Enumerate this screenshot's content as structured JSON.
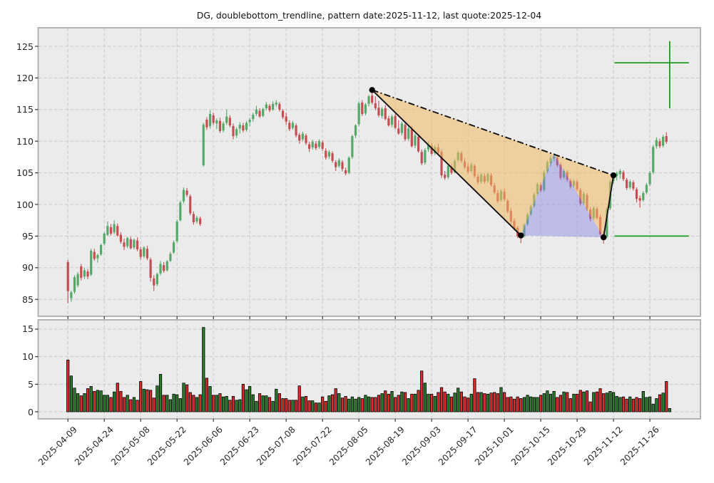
{
  "title": "DG, doublebottom_trendline, pattern date:2025-11-12, last quote:2025-12-04",
  "chart_data": {
    "type": "candlestick+volume",
    "symbol": "DG",
    "pattern_name": "doublebottom_trendline",
    "pattern_date": "2025-11-12",
    "last_quote_date": "2025-12-04",
    "price_panel": {
      "y_ticks": [
        85,
        90,
        95,
        100,
        105,
        110,
        115,
        120,
        125
      ],
      "ylim": [
        82.32,
        127.93
      ],
      "xlim": [
        -9,
        191.3
      ],
      "grid": true
    },
    "volume_panel": {
      "y_ticks": [
        0,
        5,
        10,
        15
      ],
      "ylim": [
        -1.29,
        16.68
      ]
    },
    "x_ticks": {
      "indices": [
        0,
        11,
        22,
        33,
        44,
        55,
        66,
        77,
        88,
        99,
        110,
        121,
        132,
        143,
        154,
        165,
        176
      ],
      "labels": [
        "2025-04-09",
        "2025-04-24",
        "2025-05-08",
        "2025-05-22",
        "2025-06-06",
        "2025-06-23",
        "2025-07-08",
        "2025-07-22",
        "2025-08-05",
        "2025-08-19",
        "2025-09-03",
        "2025-09-17",
        "2025-10-01",
        "2025-10-15",
        "2025-10-29",
        "2025-11-12",
        "2025-11-26"
      ]
    },
    "candles": [
      [
        90.9,
        91.2,
        84.4,
        86.3,
        9.4
      ],
      [
        85.2,
        86.4,
        84.6,
        86.1,
        6.5
      ],
      [
        86.2,
        88.8,
        85.9,
        88.5,
        4.3
      ],
      [
        87.2,
        89.3,
        86.9,
        89.0,
        3.3
      ],
      [
        90.2,
        90.6,
        88.0,
        88.4,
        2.9
      ],
      [
        88.6,
        90.0,
        88.2,
        89.6,
        3.3
      ],
      [
        89.4,
        89.8,
        88.2,
        88.6,
        4.2
      ],
      [
        88.9,
        93.0,
        88.7,
        92.7,
        4.6
      ],
      [
        92.5,
        93.0,
        91.1,
        91.4,
        3.7
      ],
      [
        91.5,
        92.2,
        90.8,
        92.0,
        3.9
      ],
      [
        92.1,
        93.8,
        91.9,
        93.6,
        3.8
      ],
      [
        93.8,
        95.6,
        93.5,
        95.4,
        3.0
      ],
      [
        95.2,
        97.3,
        95.0,
        96.6,
        3.0
      ],
      [
        96.4,
        96.9,
        95.1,
        95.4,
        2.6
      ],
      [
        95.6,
        97.5,
        95.3,
        96.9,
        3.6
      ],
      [
        96.6,
        97.0,
        94.9,
        95.1,
        5.2
      ],
      [
        95.2,
        95.6,
        93.8,
        94.1,
        3.7
      ],
      [
        94.0,
        94.6,
        92.8,
        93.3,
        2.6
      ],
      [
        93.4,
        94.9,
        93.1,
        94.7,
        3.0
      ],
      [
        94.5,
        94.9,
        92.9,
        93.1,
        2.2
      ],
      [
        93.2,
        94.6,
        92.9,
        94.4,
        2.6
      ],
      [
        94.3,
        94.8,
        92.6,
        92.9,
        2.1
      ],
      [
        92.9,
        93.3,
        91.3,
        91.7,
        5.5
      ],
      [
        91.8,
        93.4,
        91.5,
        93.2,
        4.1
      ],
      [
        93.0,
        93.5,
        91.2,
        91.5,
        4.0
      ],
      [
        91.3,
        91.6,
        87.8,
        88.4,
        3.9
      ],
      [
        88.3,
        88.8,
        86.3,
        87.2,
        2.5
      ],
      [
        87.4,
        89.2,
        87.1,
        89.0,
        4.7
      ],
      [
        89.1,
        91.1,
        88.8,
        90.6,
        6.8
      ],
      [
        90.4,
        90.9,
        89.2,
        89.5,
        3.0
      ],
      [
        89.6,
        91.2,
        89.4,
        91.0,
        3.0
      ],
      [
        91.1,
        92.5,
        90.9,
        92.2,
        2.2
      ],
      [
        92.4,
        94.3,
        92.2,
        94.0,
        3.2
      ],
      [
        94.2,
        97.6,
        94.0,
        97.3,
        3.1
      ],
      [
        97.5,
        100.6,
        97.3,
        100.3,
        2.4
      ],
      [
        100.5,
        102.7,
        100.2,
        102.3,
        5.2
      ],
      [
        102.2,
        102.6,
        101.2,
        101.5,
        4.9
      ],
      [
        101.3,
        101.6,
        98.3,
        98.6,
        3.5
      ],
      [
        98.5,
        98.9,
        96.8,
        97.2,
        3.0
      ],
      [
        97.3,
        98.2,
        97.0,
        97.9,
        2.6
      ],
      [
        97.8,
        98.1,
        96.6,
        96.9,
        3.1
      ],
      [
        106.2,
        112.9,
        106.0,
        112.6,
        15.3
      ],
      [
        113.4,
        113.8,
        111.8,
        112.2,
        6.1
      ],
      [
        112.4,
        114.9,
        112.0,
        114.3,
        4.6
      ],
      [
        114.1,
        114.5,
        112.6,
        112.9,
        3.0
      ],
      [
        112.8,
        113.6,
        111.9,
        113.3,
        3.0
      ],
      [
        113.2,
        113.7,
        111.3,
        111.6,
        3.3
      ],
      [
        111.7,
        113.1,
        111.4,
        112.8,
        2.7
      ],
      [
        112.9,
        115.0,
        112.6,
        113.9,
        2.8
      ],
      [
        113.7,
        114.1,
        112.2,
        112.5,
        2.1
      ],
      [
        112.4,
        112.8,
        110.3,
        110.8,
        2.8
      ],
      [
        110.9,
        112.2,
        110.5,
        111.9,
        2.1
      ],
      [
        112.0,
        113.0,
        111.2,
        112.6,
        2.2
      ],
      [
        112.5,
        112.9,
        111.4,
        111.7,
        5.0
      ],
      [
        111.8,
        113.2,
        111.5,
        112.9,
        4.0
      ],
      [
        113.0,
        113.7,
        112.4,
        113.4,
        4.6
      ],
      [
        113.5,
        114.5,
        113.1,
        114.2,
        3.1
      ],
      [
        114.3,
        115.6,
        114.0,
        115.0,
        1.9
      ],
      [
        114.8,
        115.2,
        113.7,
        113.9,
        3.3
      ],
      [
        114.0,
        115.3,
        113.8,
        115.1,
        2.9
      ],
      [
        115.2,
        116.2,
        114.9,
        115.8,
        2.9
      ],
      [
        115.6,
        115.9,
        114.6,
        114.9,
        2.6
      ],
      [
        115.0,
        116.3,
        114.8,
        115.9,
        1.9
      ],
      [
        115.8,
        116.5,
        115.4,
        116.1,
        4.1
      ],
      [
        115.9,
        116.2,
        114.7,
        115.0,
        3.3
      ],
      [
        114.8,
        115.1,
        113.5,
        113.8,
        2.4
      ],
      [
        113.9,
        114.5,
        112.6,
        113.1,
        2.4
      ],
      [
        112.9,
        113.3,
        111.6,
        111.9,
        2.1
      ],
      [
        112.1,
        113.2,
        111.8,
        112.9,
        2.1
      ],
      [
        112.5,
        112.8,
        110.6,
        110.9,
        2.1
      ],
      [
        111.0,
        111.3,
        109.6,
        110.1,
        4.7
      ],
      [
        110.3,
        111.5,
        110.0,
        111.2,
        2.7
      ],
      [
        110.9,
        111.2,
        109.4,
        109.7,
        2.8
      ],
      [
        109.5,
        109.9,
        108.3,
        108.8,
        2.0
      ],
      [
        109.0,
        110.2,
        108.7,
        109.9,
        2.0
      ],
      [
        109.6,
        110.0,
        108.6,
        108.9,
        1.6
      ],
      [
        109.1,
        110.3,
        108.8,
        110.0,
        1.6
      ],
      [
        109.8,
        110.1,
        108.5,
        108.8,
        2.7
      ],
      [
        108.5,
        108.9,
        107.1,
        107.4,
        1.9
      ],
      [
        107.6,
        108.6,
        107.2,
        108.3,
        2.9
      ],
      [
        108.1,
        108.4,
        106.6,
        106.9,
        3.1
      ],
      [
        106.7,
        107.0,
        105.3,
        105.9,
        4.2
      ],
      [
        106.1,
        107.3,
        105.8,
        107.0,
        3.3
      ],
      [
        106.7,
        107.0,
        105.2,
        105.6,
        2.5
      ],
      [
        105.4,
        105.8,
        104.6,
        104.9,
        2.8
      ],
      [
        105.0,
        107.6,
        104.8,
        107.4,
        2.3
      ],
      [
        107.5,
        111.0,
        107.2,
        110.8,
        2.7
      ],
      [
        110.9,
        112.7,
        110.5,
        112.5,
        2.3
      ],
      [
        112.7,
        116.3,
        112.4,
        116.0,
        2.6
      ],
      [
        116.1,
        116.5,
        114.0,
        114.3,
        2.4
      ],
      [
        114.4,
        116.0,
        114.1,
        115.8,
        3.0
      ],
      [
        115.9,
        117.3,
        115.5,
        117.1,
        2.7
      ],
      [
        117.2,
        118.1,
        115.8,
        116.1,
        2.6
      ],
      [
        116.0,
        117.1,
        114.9,
        115.2,
        2.6
      ],
      [
        115.3,
        116.4,
        113.8,
        114.1,
        3.0
      ],
      [
        114.0,
        115.4,
        113.6,
        115.1,
        3.3
      ],
      [
        115.2,
        115.7,
        113.3,
        113.5,
        3.8
      ],
      [
        113.6,
        114.0,
        112.3,
        112.5,
        3.2
      ],
      [
        112.6,
        114.2,
        112.2,
        113.9,
        3.7
      ],
      [
        114.0,
        114.3,
        111.9,
        112.1,
        2.6
      ],
      [
        112.0,
        113.3,
        111.0,
        111.2,
        3.0
      ],
      [
        111.3,
        113.1,
        110.9,
        112.8,
        3.6
      ],
      [
        112.6,
        112.9,
        110.0,
        110.3,
        3.5
      ],
      [
        110.4,
        112.3,
        110.1,
        112.0,
        2.4
      ],
      [
        111.9,
        112.4,
        109.0,
        109.2,
        3.2
      ],
      [
        109.3,
        111.2,
        108.9,
        110.9,
        3.2
      ],
      [
        110.7,
        111.1,
        108.2,
        108.4,
        3.9
      ],
      [
        108.3,
        108.7,
        106.2,
        106.5,
        7.4
      ],
      [
        106.6,
        108.9,
        106.3,
        108.6,
        5.2
      ],
      [
        108.7,
        110.0,
        108.3,
        109.5,
        3.2
      ],
      [
        109.3,
        109.7,
        107.7,
        108.0,
        3.2
      ],
      [
        108.1,
        109.4,
        107.8,
        109.1,
        2.8
      ],
      [
        109.0,
        109.6,
        107.9,
        108.2,
        3.5
      ],
      [
        108.3,
        108.7,
        104.2,
        104.6,
        4.4
      ],
      [
        104.7,
        105.3,
        103.9,
        104.2,
        3.6
      ],
      [
        104.3,
        106.4,
        104.0,
        106.1,
        3.2
      ],
      [
        106.0,
        106.4,
        104.7,
        105.0,
        2.7
      ],
      [
        105.1,
        107.2,
        104.9,
        106.9,
        3.4
      ],
      [
        107.0,
        108.5,
        106.7,
        108.2,
        4.3
      ],
      [
        108.1,
        108.4,
        106.6,
        106.9,
        3.6
      ],
      [
        106.8,
        107.3,
        105.6,
        105.9,
        2.7
      ],
      [
        106.0,
        106.5,
        104.9,
        105.2,
        2.5
      ],
      [
        105.3,
        106.6,
        105.0,
        106.3,
        3.2
      ],
      [
        106.1,
        106.4,
        104.2,
        104.5,
        6.0
      ],
      [
        104.4,
        104.8,
        103.2,
        103.5,
        3.5
      ],
      [
        103.6,
        105.0,
        103.3,
        104.7,
        3.5
      ],
      [
        104.5,
        104.9,
        103.3,
        103.6,
        3.3
      ],
      [
        103.7,
        105.1,
        103.4,
        104.8,
        3.2
      ],
      [
        104.6,
        105.0,
        102.8,
        103.1,
        3.4
      ],
      [
        103.0,
        103.4,
        101.6,
        101.9,
        3.5
      ],
      [
        101.8,
        102.3,
        100.2,
        100.5,
        3.3
      ],
      [
        100.7,
        102.4,
        100.4,
        102.1,
        4.4
      ],
      [
        102.0,
        102.5,
        100.5,
        100.8,
        3.5
      ],
      [
        100.6,
        100.9,
        98.6,
        98.9,
        2.6
      ],
      [
        99.0,
        99.4,
        96.9,
        97.3,
        2.7
      ],
      [
        97.4,
        97.8,
        95.9,
        96.2,
        2.3
      ],
      [
        96.3,
        96.6,
        94.7,
        95.0,
        2.7
      ],
      [
        95.1,
        95.5,
        93.9,
        94.9,
        2.4
      ],
      [
        95.0,
        97.0,
        94.8,
        96.8,
        2.6
      ],
      [
        96.9,
        98.7,
        96.6,
        98.4,
        3.0
      ],
      [
        98.5,
        100.0,
        98.2,
        99.7,
        2.7
      ],
      [
        99.8,
        101.9,
        99.5,
        101.6,
        2.6
      ],
      [
        101.7,
        103.5,
        101.4,
        103.2,
        2.6
      ],
      [
        103.1,
        103.5,
        101.9,
        102.2,
        3.0
      ],
      [
        102.3,
        105.4,
        102.0,
        105.1,
        3.3
      ],
      [
        105.2,
        107.0,
        104.9,
        106.7,
        3.8
      ],
      [
        106.5,
        107.8,
        106.0,
        107.4,
        3.2
      ],
      [
        107.3,
        108.1,
        106.8,
        107.6,
        3.7
      ],
      [
        107.4,
        107.7,
        105.9,
        106.2,
        2.6
      ],
      [
        106.3,
        106.6,
        103.9,
        104.2,
        3.0
      ],
      [
        104.3,
        105.6,
        104.0,
        105.3,
        3.6
      ],
      [
        105.1,
        105.4,
        103.6,
        103.9,
        3.5
      ],
      [
        103.8,
        104.1,
        102.5,
        102.8,
        2.4
      ],
      [
        102.9,
        104.0,
        102.6,
        103.7,
        3.2
      ],
      [
        103.6,
        103.9,
        102.1,
        102.4,
        3.2
      ],
      [
        102.3,
        102.6,
        99.8,
        100.1,
        3.9
      ],
      [
        100.2,
        102.0,
        99.9,
        101.7,
        3.6
      ],
      [
        101.5,
        101.8,
        99.0,
        99.3,
        3.8
      ],
      [
        99.2,
        99.6,
        97.3,
        97.7,
        1.8
      ],
      [
        97.8,
        99.7,
        97.5,
        99.4,
        3.5
      ],
      [
        99.3,
        99.6,
        97.6,
        97.9,
        3.6
      ],
      [
        98.0,
        98.4,
        95.0,
        95.3,
        4.2
      ],
      [
        95.4,
        95.8,
        93.8,
        94.8,
        3.3
      ],
      [
        94.9,
        99.6,
        94.7,
        99.3,
        3.4
      ],
      [
        99.4,
        103.9,
        99.1,
        103.6,
        3.7
      ],
      [
        103.7,
        104.9,
        103.3,
        104.6,
        3.5
      ],
      [
        104.5,
        105.2,
        103.8,
        104.9,
        2.8
      ],
      [
        104.8,
        105.6,
        104.1,
        105.3,
        2.6
      ],
      [
        105.1,
        105.4,
        103.7,
        104.0,
        2.7
      ],
      [
        103.9,
        104.2,
        102.3,
        102.6,
        2.3
      ],
      [
        102.7,
        103.9,
        102.4,
        103.6,
        2.7
      ],
      [
        103.5,
        103.8,
        102.2,
        102.5,
        2.3
      ],
      [
        102.4,
        102.7,
        100.3,
        100.9,
        2.6
      ],
      [
        101.0,
        101.4,
        99.5,
        100.6,
        2.4
      ],
      [
        100.7,
        102.1,
        100.4,
        101.8,
        3.7
      ],
      [
        101.9,
        103.4,
        101.6,
        103.1,
        2.6
      ],
      [
        103.2,
        105.3,
        102.9,
        105.0,
        2.7
      ],
      [
        105.1,
        109.4,
        104.8,
        109.1,
        1.4
      ],
      [
        109.2,
        110.6,
        108.8,
        110.2,
        2.4
      ],
      [
        110.0,
        110.4,
        108.9,
        109.2,
        3.1
      ],
      [
        109.3,
        111.0,
        109.0,
        110.7,
        3.4
      ],
      [
        110.8,
        111.4,
        109.6,
        109.9,
        5.5
      ]
    ],
    "partial_last_volume": {
      "index": 182,
      "value": 0.6
    },
    "pattern": {
      "points": {
        "peak": {
          "index": 92,
          "price": 118.1
        },
        "bottom1": {
          "index": 137,
          "price": 95.1
        },
        "middle_apex": {
          "index": 147,
          "price": 108.0
        },
        "bottom2": {
          "index": 162,
          "price": 94.8
        },
        "confirmation": {
          "index": 165,
          "price": 104.6
        }
      },
      "target_price_level": 122.4,
      "support_price_level": 95.0,
      "level_lines_x_index_range": [
        165.3,
        187.8
      ],
      "last_quote_marker": {
        "x_index": 182,
        "price_top": 125.8,
        "price_bottom": 115.2
      }
    },
    "colors": {
      "candle_up": "#55A868",
      "candle_down": "#C44E52",
      "volume_up": "#2B7E2B",
      "volume_down": "#E02A2A",
      "volume_edge": "#000000",
      "axes_bg": "#EBEBEB",
      "grid": "#C9C9C9",
      "border": "#B3B3B3",
      "pattern_line": "#111111",
      "pattern_fill_channel": "rgba(240,184,97,0.55)",
      "pattern_fill_bottom": "rgba(132,132,229,0.45)",
      "level_line_green": "#1A9C1A",
      "dot": "#000000",
      "text": "#262626"
    }
  }
}
